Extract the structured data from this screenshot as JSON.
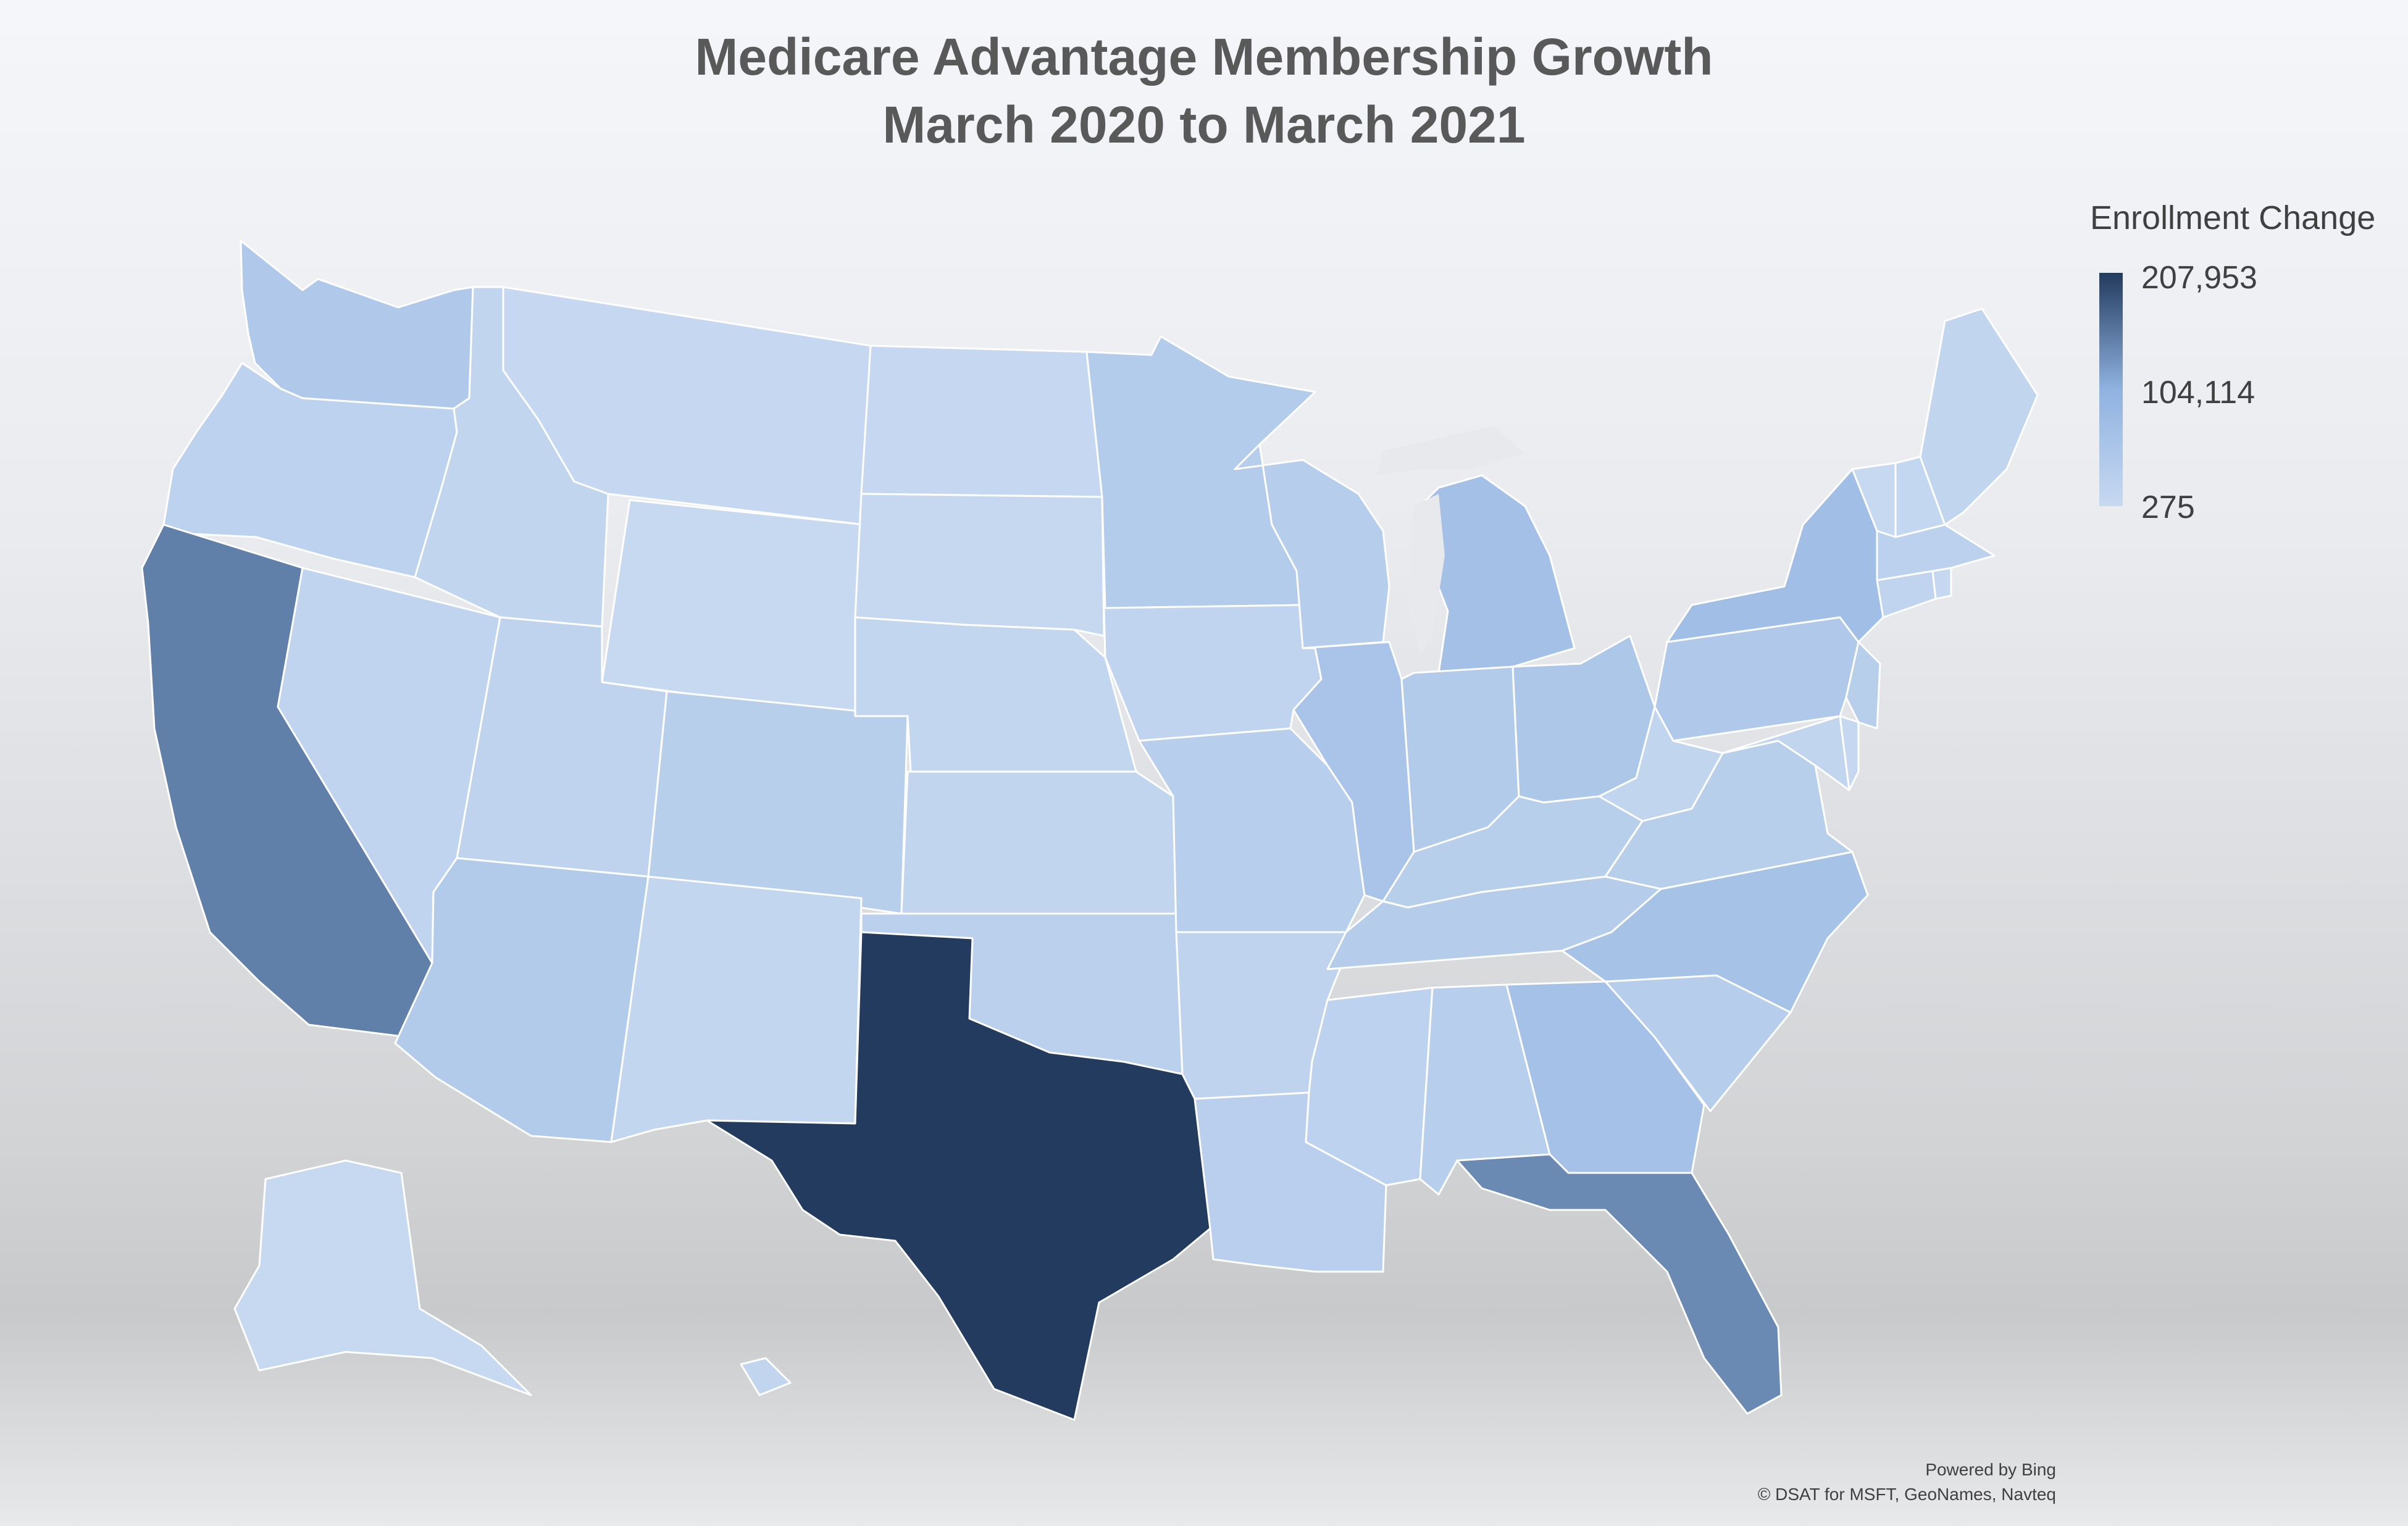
{
  "chart_data": {
    "type": "choropleth",
    "title_lines": [
      "Medicare Advantage Membership Growth",
      "March 2020 to March 2021"
    ],
    "legend": {
      "title": "Enrollment Change",
      "max_label": "207,953",
      "mid_label": "104,114",
      "min_label": "275",
      "min": 275,
      "max": 207953,
      "color_low": "#c7d9f1",
      "color_mid": "#8fb2e0",
      "color_high": "#233b5e"
    },
    "regions": [
      {
        "id": "WA",
        "name": "Washington",
        "value": 42000
      },
      {
        "id": "OR",
        "name": "Oregon",
        "value": 20000
      },
      {
        "id": "CA",
        "name": "California",
        "value": 148000
      },
      {
        "id": "NV",
        "name": "Nevada",
        "value": 14000
      },
      {
        "id": "ID",
        "name": "Idaho",
        "value": 12000
      },
      {
        "id": "MT",
        "name": "Montana",
        "value": 3000
      },
      {
        "id": "WY",
        "name": "Wyoming",
        "value": 1000
      },
      {
        "id": "UT",
        "name": "Utah",
        "value": 16000
      },
      {
        "id": "AZ",
        "name": "Arizona",
        "value": 38000
      },
      {
        "id": "CO",
        "name": "Colorado",
        "value": 28000
      },
      {
        "id": "NM",
        "name": "New Mexico",
        "value": 8000
      },
      {
        "id": "ND",
        "name": "North Dakota",
        "value": 2000
      },
      {
        "id": "SD",
        "name": "South Dakota",
        "value": 4000
      },
      {
        "id": "NE",
        "name": "Nebraska",
        "value": 9000
      },
      {
        "id": "KS",
        "name": "Kansas",
        "value": 12000
      },
      {
        "id": "OK",
        "name": "Oklahoma",
        "value": 24000
      },
      {
        "id": "TX",
        "name": "Texas",
        "value": 207953
      },
      {
        "id": "MN",
        "name": "Minnesota",
        "value": 36000
      },
      {
        "id": "IA",
        "name": "Iowa",
        "value": 14000
      },
      {
        "id": "MO",
        "name": "Missouri",
        "value": 30000
      },
      {
        "id": "AR",
        "name": "Arkansas",
        "value": 16000
      },
      {
        "id": "LA",
        "name": "Louisiana",
        "value": 26000
      },
      {
        "id": "WI",
        "name": "Wisconsin",
        "value": 32000
      },
      {
        "id": "IL",
        "name": "Illinois",
        "value": 55000
      },
      {
        "id": "MI",
        "name": "Michigan",
        "value": 66000
      },
      {
        "id": "IN",
        "name": "Indiana",
        "value": 38000
      },
      {
        "id": "OH",
        "name": "Ohio",
        "value": 48000
      },
      {
        "id": "KY",
        "name": "Kentucky",
        "value": 28000
      },
      {
        "id": "TN",
        "name": "Tennessee",
        "value": 34000
      },
      {
        "id": "MS",
        "name": "Mississippi",
        "value": 18000
      },
      {
        "id": "AL",
        "name": "Alabama",
        "value": 30000
      },
      {
        "id": "GA",
        "name": "Georgia",
        "value": 64000
      },
      {
        "id": "FL",
        "name": "Florida",
        "value": 140000
      },
      {
        "id": "SC",
        "name": "South Carolina",
        "value": 32000
      },
      {
        "id": "NC",
        "name": "North Carolina",
        "value": 62000
      },
      {
        "id": "VA",
        "name": "Virginia",
        "value": 28000
      },
      {
        "id": "WV",
        "name": "West Virginia",
        "value": 10000
      },
      {
        "id": "PA",
        "name": "Pennsylvania",
        "value": 42000
      },
      {
        "id": "NY",
        "name": "New York",
        "value": 70000
      },
      {
        "id": "MD",
        "name": "Maryland",
        "value": 12000
      },
      {
        "id": "DE",
        "name": "Delaware",
        "value": 3000
      },
      {
        "id": "NJ",
        "name": "New Jersey",
        "value": 28000
      },
      {
        "id": "CT",
        "name": "Connecticut",
        "value": 14000
      },
      {
        "id": "RI",
        "name": "Rhode Island",
        "value": 3000
      },
      {
        "id": "MA",
        "name": "Massachusetts",
        "value": 22000
      },
      {
        "id": "VT",
        "name": "Vermont",
        "value": 1000
      },
      {
        "id": "NH",
        "name": "New Hampshire",
        "value": 5000
      },
      {
        "id": "ME",
        "name": "Maine",
        "value": 10000
      },
      {
        "id": "AK",
        "name": "Alaska",
        "value": 275
      },
      {
        "id": "HI",
        "name": "Hawaii",
        "value": 12000
      }
    ]
  },
  "credits": {
    "line1": "Powered by Bing",
    "line2": "© DSAT for MSFT, GeoNames, Navteq"
  }
}
